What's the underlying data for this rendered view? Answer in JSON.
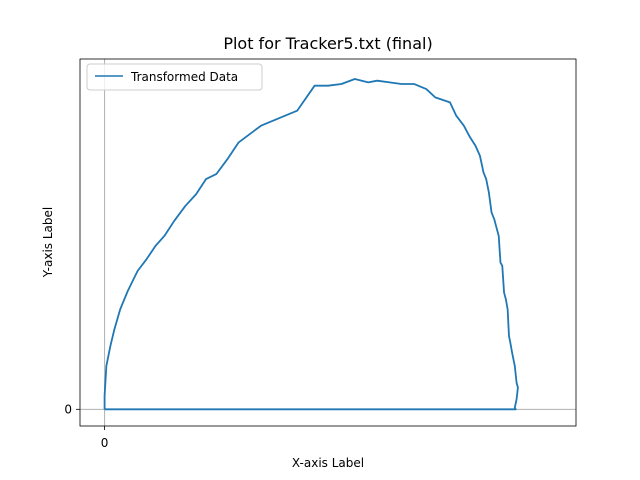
{
  "chart_data": {
    "type": "line",
    "title": "Plot for Tracker5.txt (final)",
    "xlabel": "X-axis Label",
    "ylabel": "Y-axis Label",
    "xlim": [
      -0.055,
      1.055
    ],
    "ylim": [
      -0.05,
      1.05
    ],
    "x_ticks": [
      {
        "value": 0,
        "label": "0"
      }
    ],
    "y_ticks": [
      {
        "value": 0,
        "label": "0"
      }
    ],
    "reference_lines": {
      "x": 0,
      "y": 0,
      "color": "#b0b0b0"
    },
    "legend": {
      "position": "upper-left",
      "entries": [
        "Transformed Data"
      ]
    },
    "grid": false,
    "series": [
      {
        "name": "Transformed Data",
        "color": "#1f77b4",
        "points": [
          [
            0.0,
            0.0
          ],
          [
            0.0,
            0.04
          ],
          [
            0.004,
            0.13
          ],
          [
            0.013,
            0.19
          ],
          [
            0.022,
            0.24
          ],
          [
            0.035,
            0.3
          ],
          [
            0.052,
            0.355
          ],
          [
            0.074,
            0.415
          ],
          [
            0.094,
            0.45
          ],
          [
            0.114,
            0.49
          ],
          [
            0.134,
            0.52
          ],
          [
            0.156,
            0.565
          ],
          [
            0.181,
            0.61
          ],
          [
            0.205,
            0.645
          ],
          [
            0.227,
            0.69
          ],
          [
            0.25,
            0.705
          ],
          [
            0.275,
            0.75
          ],
          [
            0.3,
            0.8
          ],
          [
            0.325,
            0.825
          ],
          [
            0.35,
            0.85
          ],
          [
            0.377,
            0.865
          ],
          [
            0.404,
            0.88
          ],
          [
            0.431,
            0.895
          ],
          [
            0.47,
            0.97
          ],
          [
            0.5,
            0.97
          ],
          [
            0.53,
            0.975
          ],
          [
            0.56,
            0.99
          ],
          [
            0.59,
            0.98
          ],
          [
            0.61,
            0.985
          ],
          [
            0.638,
            0.98
          ],
          [
            0.664,
            0.975
          ],
          [
            0.693,
            0.975
          ],
          [
            0.72,
            0.96
          ],
          [
            0.74,
            0.935
          ],
          [
            0.773,
            0.92
          ],
          [
            0.787,
            0.88
          ],
          [
            0.804,
            0.85
          ],
          [
            0.818,
            0.815
          ],
          [
            0.83,
            0.79
          ],
          [
            0.84,
            0.76
          ],
          [
            0.848,
            0.71
          ],
          [
            0.854,
            0.69
          ],
          [
            0.86,
            0.65
          ],
          [
            0.866,
            0.59
          ],
          [
            0.872,
            0.57
          ],
          [
            0.876,
            0.55
          ],
          [
            0.882,
            0.52
          ],
          [
            0.886,
            0.44
          ],
          [
            0.89,
            0.43
          ],
          [
            0.894,
            0.35
          ],
          [
            0.898,
            0.33
          ],
          [
            0.902,
            0.3
          ],
          [
            0.905,
            0.22
          ],
          [
            0.908,
            0.2
          ],
          [
            0.912,
            0.17
          ],
          [
            0.918,
            0.13
          ],
          [
            0.922,
            0.08
          ],
          [
            0.925,
            0.065
          ],
          [
            0.922,
            0.03
          ],
          [
            0.918,
            0.005
          ],
          [
            0.92,
            0.0
          ],
          [
            0.0,
            0.0
          ]
        ]
      }
    ]
  }
}
